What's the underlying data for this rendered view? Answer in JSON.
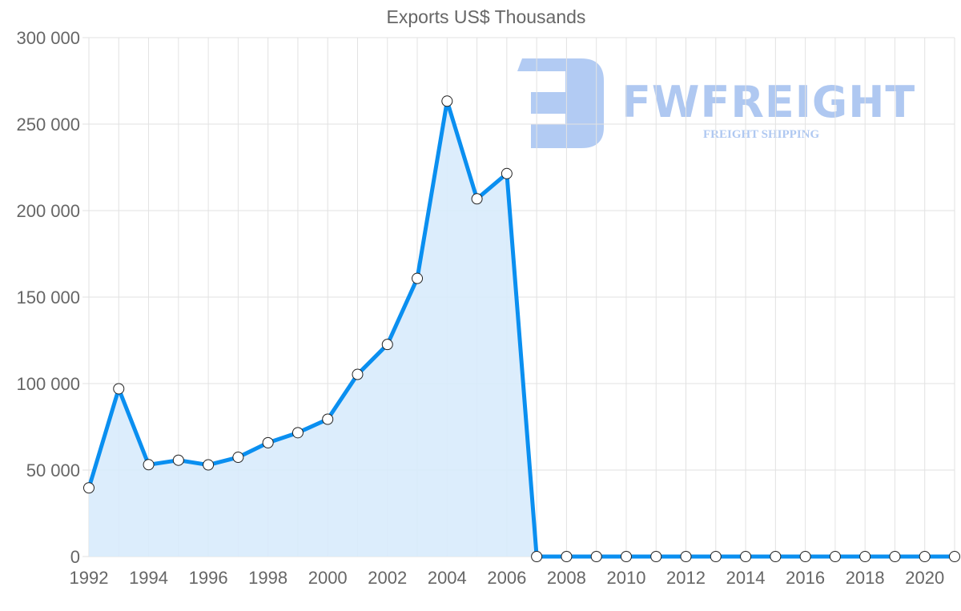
{
  "watermark": {
    "name": "FWFREIGHT",
    "tagline": "FREIGHT SHIPPING"
  },
  "colors": {
    "line": "#0a8ff0",
    "fill": "#d8ebfc",
    "grid": "#e2e2e2",
    "text": "#666666",
    "logo": "#aec8f2"
  },
  "chart_data": {
    "type": "area",
    "title": "Exports US$ Thousands",
    "xlabel": "",
    "ylabel": "",
    "x": [
      1992,
      1993,
      1994,
      1995,
      1996,
      1997,
      1998,
      1999,
      2000,
      2001,
      2002,
      2003,
      2004,
      2005,
      2006,
      2007,
      2008,
      2009,
      2010,
      2011,
      2012,
      2013,
      2014,
      2015,
      2016,
      2017,
      2018,
      2019,
      2020,
      2021
    ],
    "values": [
      39700,
      97000,
      53100,
      55700,
      53000,
      57400,
      65800,
      71600,
      79400,
      105300,
      122600,
      160800,
      263300,
      206800,
      221400,
      0,
      0,
      0,
      0,
      0,
      0,
      0,
      0,
      0,
      0,
      0,
      0,
      0,
      0,
      0
    ],
    "ylim": [
      0,
      300000
    ],
    "yticks": [
      0,
      50000,
      100000,
      150000,
      200000,
      250000,
      300000
    ],
    "ytick_labels": [
      "0",
      "50 000",
      "100 000",
      "150 000",
      "200 000",
      "250 000",
      "300 000"
    ],
    "xtick_labels": [
      "1992",
      "1994",
      "1996",
      "1998",
      "2000",
      "2002",
      "2004",
      "2006",
      "2008",
      "2010",
      "2012",
      "2014",
      "2016",
      "2018",
      "2020"
    ],
    "grid": true,
    "legend": "none"
  }
}
